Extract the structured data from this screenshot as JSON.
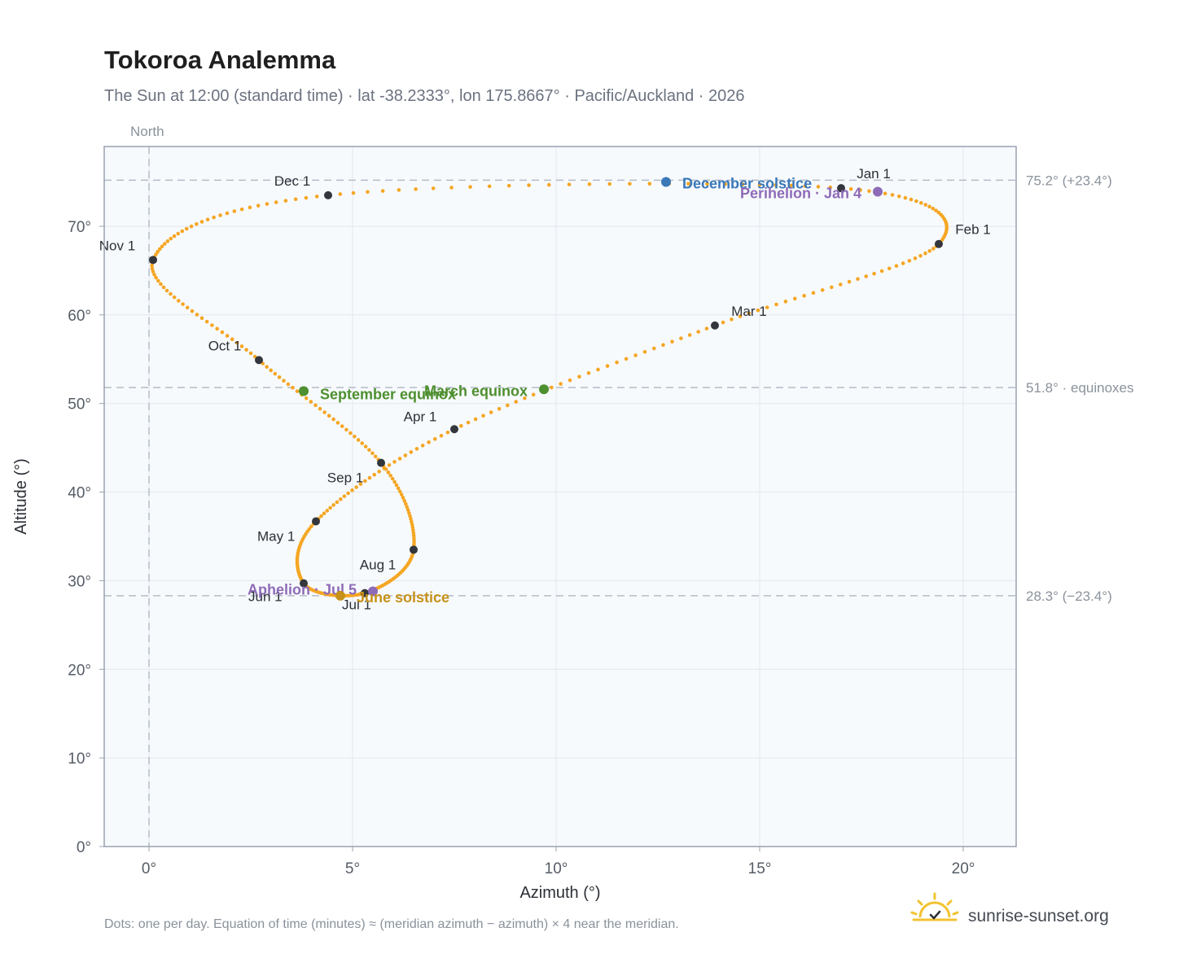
{
  "title": "Tokoroa Analemma",
  "subtitle": "The Sun at 12:00 (standard time) · lat -38.2333°, lon 175.8667° · Pacific/Auckland · 2026",
  "north_label": "North",
  "footer_note": "Dots: one per day. Equation of time (minutes) ≈ (meridian azimuth − azimuth) × 4 near the meridian.",
  "brand": {
    "name": "sunrise-sunset.org",
    "icon": "sun-logo-icon"
  },
  "colors": {
    "curve": "#f5a623",
    "month_marker": "#33373d",
    "equinox": "#4e8f2f",
    "december_solstice": "#3a78b8",
    "june_solstice": "#c7921a",
    "apsis": "#8e6bb8",
    "plot_background": "#f7fafd",
    "grid": "#e3e8ee",
    "reference_line": "#b4bcc6",
    "plot_border": "#98a2b0"
  },
  "chart_data": {
    "type": "scatter",
    "title": "Tokoroa Analemma",
    "xlabel": "Azimuth (°)",
    "ylabel": "Altitude (°)",
    "xlim": [
      -1.1,
      21.3
    ],
    "ylim": [
      0,
      79
    ],
    "x_ticks": [
      0,
      5,
      10,
      15,
      20
    ],
    "x_tick_labels": [
      "0°",
      "5°",
      "10°",
      "15°",
      "20°"
    ],
    "y_ticks": [
      0,
      10,
      20,
      30,
      40,
      50,
      60,
      70
    ],
    "y_tick_labels": [
      "0°",
      "10°",
      "20°",
      "30°",
      "40°",
      "50°",
      "60°",
      "70°"
    ],
    "grid": true,
    "meridian_azimuth": 0,
    "reference_lines": [
      {
        "y": 75.2,
        "label": "75.2° (+23.4°)"
      },
      {
        "y": 51.8,
        "label": "51.8° · equinoxes"
      },
      {
        "y": 28.3,
        "label": "28.3° (−23.4°)"
      }
    ],
    "monthly_points": [
      {
        "label": "Jan 1",
        "az": 17.0,
        "alt": 74.3
      },
      {
        "label": "Feb 1",
        "az": 19.4,
        "alt": 68.0
      },
      {
        "label": "Mar 1",
        "az": 13.9,
        "alt": 58.8
      },
      {
        "label": "Apr 1",
        "az": 7.5,
        "alt": 47.1
      },
      {
        "label": "May 1",
        "az": 4.1,
        "alt": 36.7
      },
      {
        "label": "Jun 1",
        "az": 3.8,
        "alt": 29.7
      },
      {
        "label": "Jul 1",
        "az": 5.3,
        "alt": 28.6
      },
      {
        "label": "Aug 1",
        "az": 6.5,
        "alt": 33.5
      },
      {
        "label": "Sep 1",
        "az": 5.7,
        "alt": 43.3
      },
      {
        "label": "Oct 1",
        "az": 2.7,
        "alt": 54.9
      },
      {
        "label": "Nov 1",
        "az": 0.1,
        "alt": 66.2
      },
      {
        "label": "Dec 1",
        "az": 4.4,
        "alt": 73.5
      }
    ],
    "events": [
      {
        "label": "December solstice",
        "az": 12.7,
        "alt": 75.0,
        "kind": "december_solstice"
      },
      {
        "label": "Perihelion · Jan 4",
        "az": 17.9,
        "alt": 73.9,
        "kind": "apsis"
      },
      {
        "label": "March equinox",
        "az": 9.7,
        "alt": 51.6,
        "kind": "equinox"
      },
      {
        "label": "September equinox",
        "az": 3.8,
        "alt": 51.4,
        "kind": "equinox"
      },
      {
        "label": "Aphelion · Jul 5",
        "az": 5.5,
        "alt": 28.8,
        "kind": "apsis"
      },
      {
        "label": "June solstice",
        "az": 4.7,
        "alt": 28.3,
        "kind": "june_solstice"
      }
    ]
  }
}
